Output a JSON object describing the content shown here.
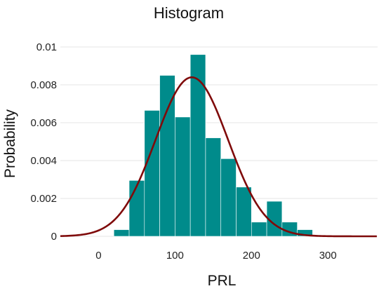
{
  "chart_data": {
    "type": "bar",
    "title": "Histogram",
    "xlabel": "PRL",
    "ylabel": "Probability",
    "xlim": [
      -50,
      365
    ],
    "ylim": [
      0,
      0.01
    ],
    "x_ticks": [
      0,
      100,
      200,
      300
    ],
    "y_ticks": [
      0,
      0.002,
      0.004,
      0.006,
      0.008,
      0.01
    ],
    "y_tick_labels": [
      "0",
      "0.002",
      "0.004",
      "0.006",
      "0.008",
      "0.01"
    ],
    "grid": true,
    "bin_width": 20,
    "bins": [
      {
        "start": 20,
        "end": 40,
        "value": 0.00035
      },
      {
        "start": 40,
        "end": 60,
        "value": 0.00295
      },
      {
        "start": 60,
        "end": 80,
        "value": 0.00665
      },
      {
        "start": 80,
        "end": 100,
        "value": 0.0085
      },
      {
        "start": 100,
        "end": 120,
        "value": 0.0063
      },
      {
        "start": 120,
        "end": 140,
        "value": 0.0096
      },
      {
        "start": 140,
        "end": 160,
        "value": 0.0052
      },
      {
        "start": 160,
        "end": 180,
        "value": 0.0041
      },
      {
        "start": 180,
        "end": 200,
        "value": 0.0026
      },
      {
        "start": 200,
        "end": 220,
        "value": 0.00075
      },
      {
        "start": 220,
        "end": 240,
        "value": 0.00185
      },
      {
        "start": 240,
        "end": 260,
        "value": 0.00075
      },
      {
        "start": 260,
        "end": 280,
        "value": 0.00035
      }
    ],
    "density_curve": {
      "type": "normal",
      "mean": 122,
      "sd": 47.5
    },
    "colors": {
      "bars": "#008b8b",
      "curve": "#7f0a0a"
    }
  }
}
